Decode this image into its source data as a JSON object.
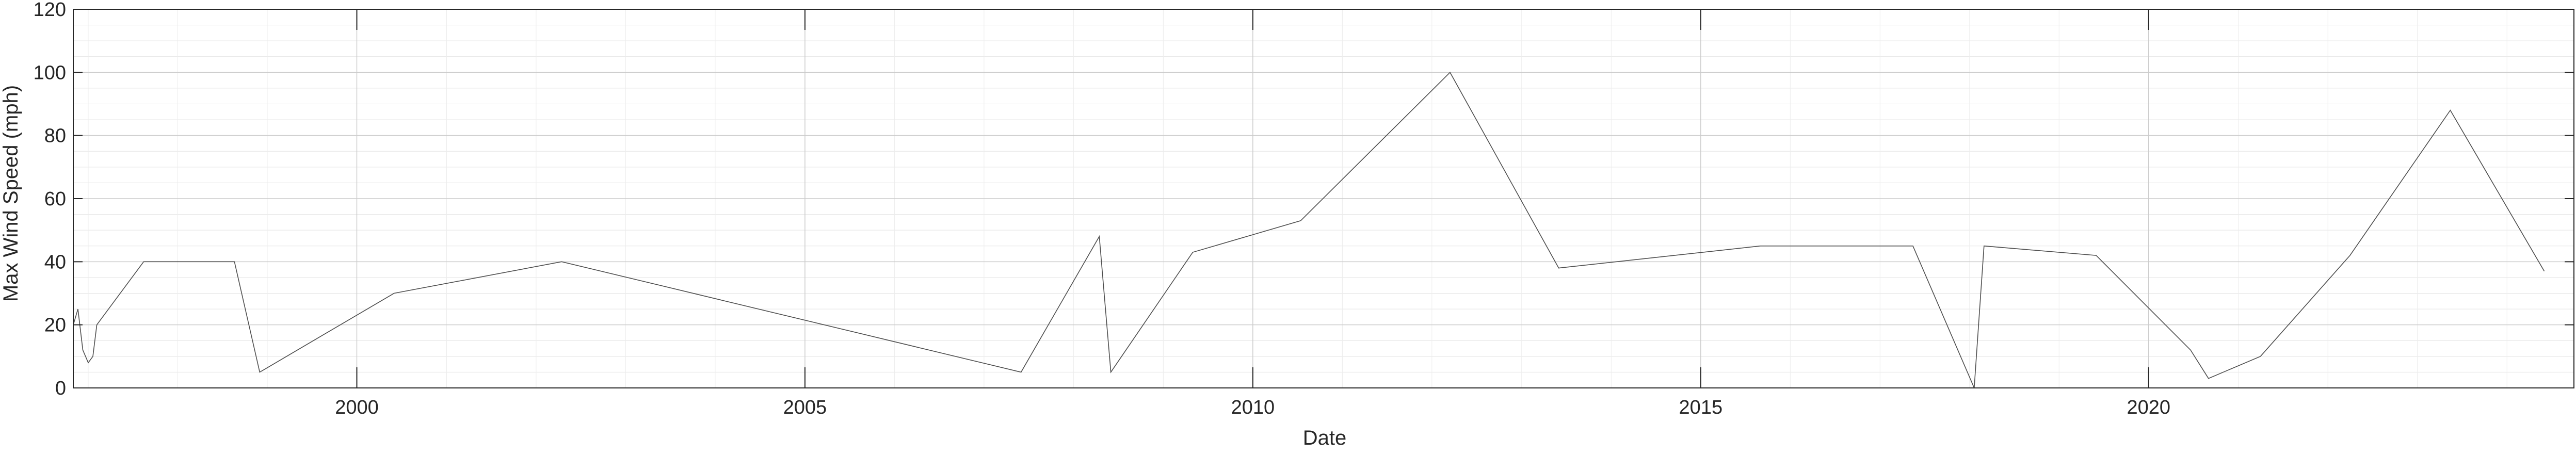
{
  "chart_data": {
    "type": "line",
    "title": "",
    "xlabel": "Date",
    "ylabel": "Max Wind Speed (mph)",
    "xlim": [
      "1996-11-01",
      "2024-09-30"
    ],
    "ylim": [
      0,
      120
    ],
    "x_ticks": [
      "2000",
      "2005",
      "2010",
      "2015",
      "2020"
    ],
    "y_ticks": [
      "0",
      "20",
      "40",
      "60",
      "80",
      "100",
      "120"
    ],
    "grid": true,
    "minor_grid": true,
    "line_color": "#4d4d4d",
    "series": [
      {
        "values_description_note": "",
        "points": [
          [
            "1996-11-01",
            20
          ],
          [
            "1996-11-20",
            25
          ],
          [
            "1996-12-10",
            12
          ],
          [
            "1997-01-01",
            8
          ],
          [
            "1997-01-20",
            10
          ],
          [
            "1997-02-05",
            20
          ],
          [
            "1997-08-15",
            40
          ],
          [
            "1998-08-20",
            40
          ],
          [
            "1998-12-01",
            5
          ],
          [
            "2000-06-01",
            30
          ],
          [
            "2002-04-15",
            40
          ],
          [
            "2007-06-01",
            5
          ],
          [
            "2008-04-15",
            48
          ],
          [
            "2008-06-01",
            5
          ],
          [
            "2009-05-01",
            43
          ],
          [
            "2010-07-15",
            53
          ],
          [
            "2012-03-15",
            100
          ],
          [
            "2013-06-01",
            38
          ],
          [
            "2015-09-01",
            45
          ],
          [
            "2017-05-15",
            45
          ],
          [
            "2018-01-20",
            0
          ],
          [
            "2018-03-01",
            45
          ],
          [
            "2019-06-01",
            42
          ],
          [
            "2020-06-20",
            12
          ],
          [
            "2020-09-01",
            3
          ],
          [
            "2021-04-01",
            10
          ],
          [
            "2022-04-01",
            42
          ],
          [
            "2023-05-15",
            88
          ],
          [
            "2024-06-01",
            37
          ]
        ]
      }
    ]
  }
}
